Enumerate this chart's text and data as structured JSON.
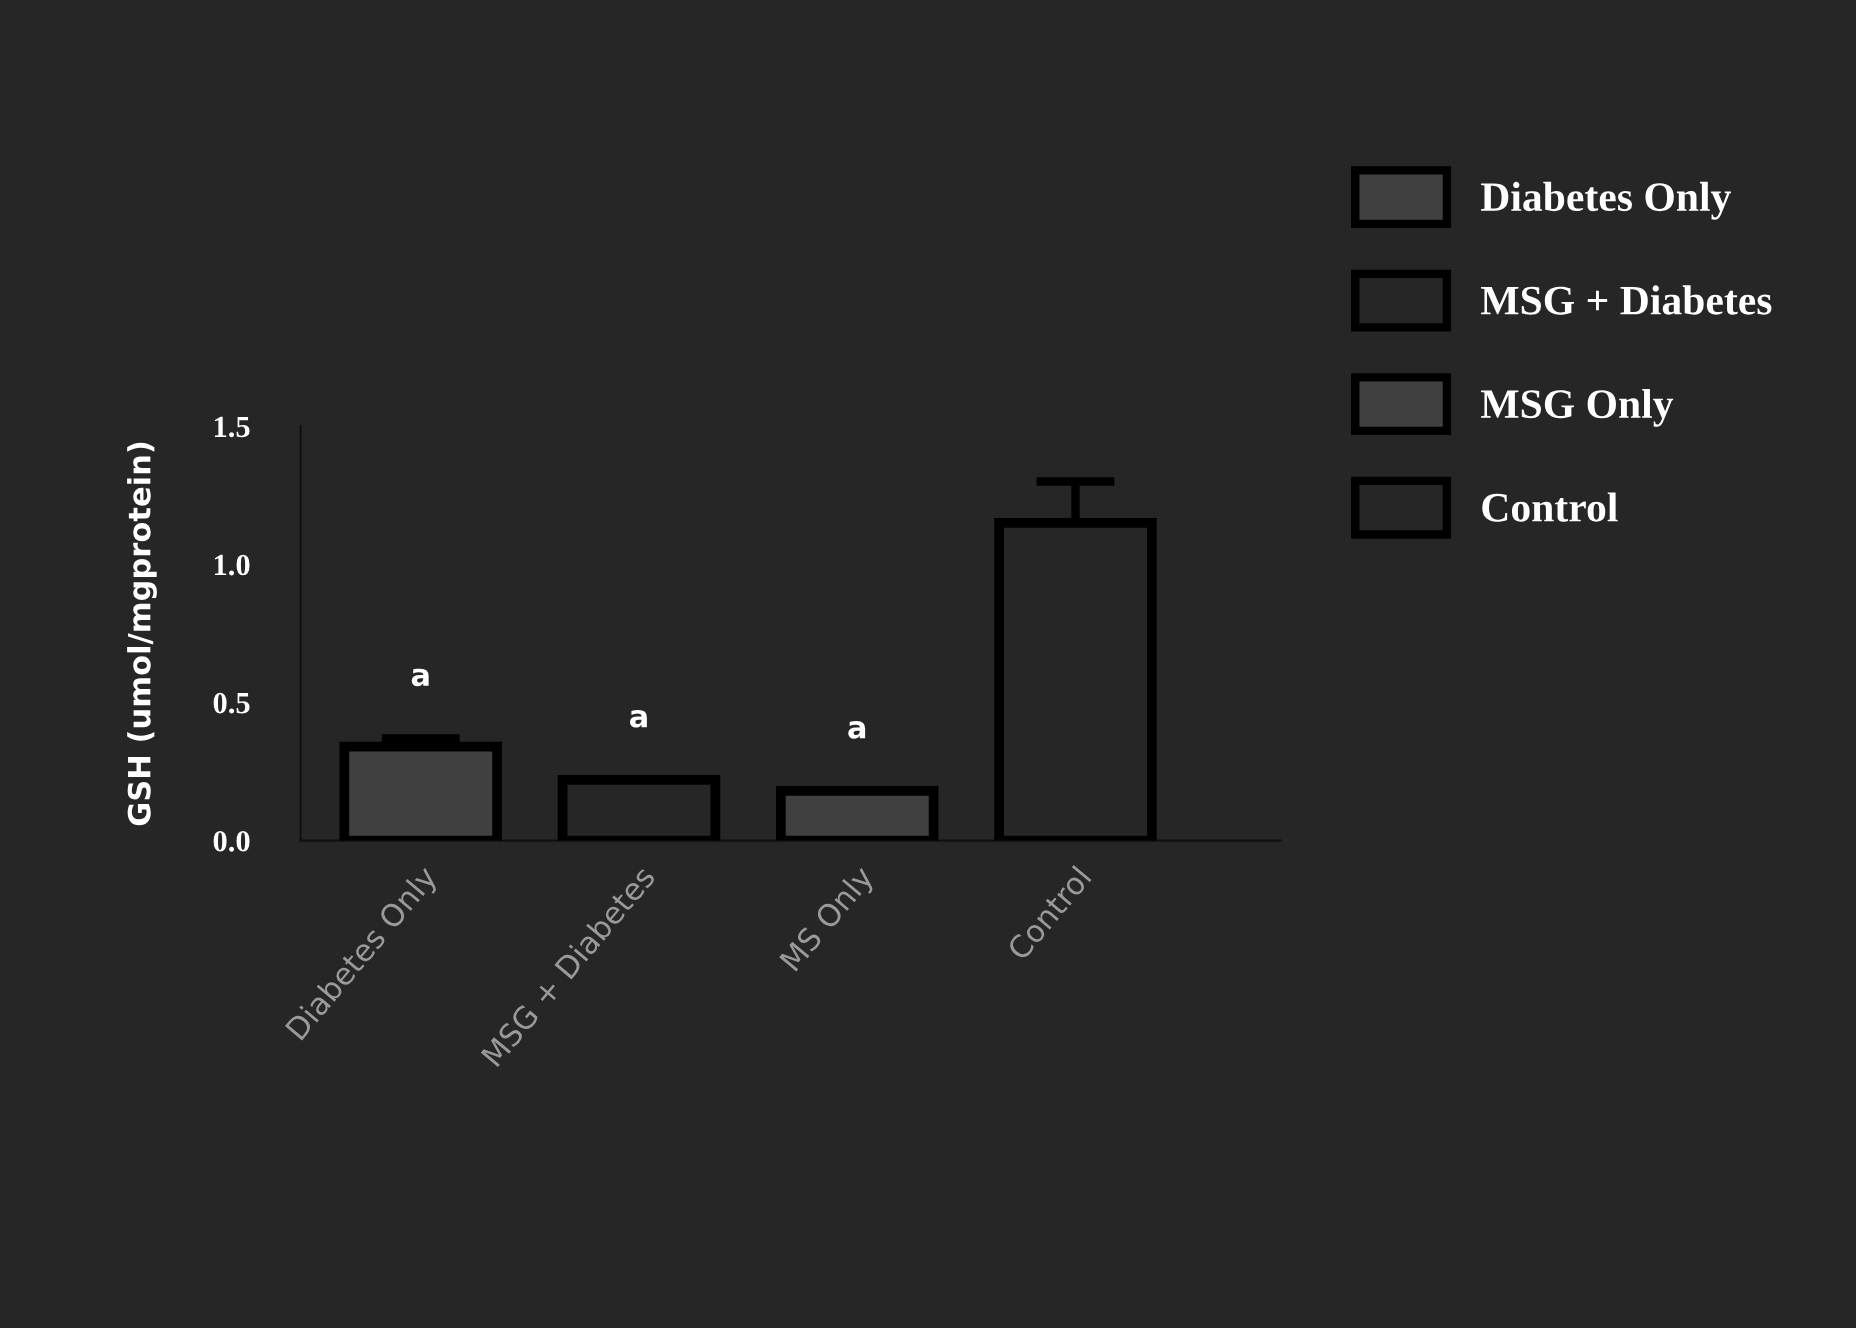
{
  "chart_data": {
    "type": "bar",
    "ylabel": "GSH (umol/mgprotein)",
    "categories": [
      "Diabetes Only",
      "MSG + Diabetes",
      "MS Only",
      "Control"
    ],
    "series": [
      {
        "name": "Diabetes Only",
        "color": "#404040",
        "values": [
          0.34,
          null,
          null,
          null
        ],
        "errors": [
          0.03,
          null,
          null,
          null
        ]
      },
      {
        "name": "MSG + Diabetes",
        "color": "#262626",
        "values": [
          null,
          0.22,
          null,
          null
        ],
        "errors": [
          null,
          null,
          null,
          null
        ]
      },
      {
        "name": "MSG Only",
        "color": "#404040",
        "values": [
          null,
          null,
          0.18,
          null
        ],
        "errors": [
          null,
          null,
          null,
          null
        ]
      },
      {
        "name": "Control",
        "color": "#262626",
        "values": [
          null,
          null,
          null,
          1.15
        ],
        "errors": [
          null,
          null,
          null,
          0.15
        ]
      }
    ],
    "ylim": [
      0,
      1.5
    ],
    "yticks": [
      {
        "value": 0,
        "label": "0.0"
      },
      0.5,
      {
        "value": 1,
        "label": "1.0"
      },
      1.5
    ],
    "annotations": [
      "a",
      "a",
      "a"
    ],
    "legend": "top right",
    "grid": false
  }
}
